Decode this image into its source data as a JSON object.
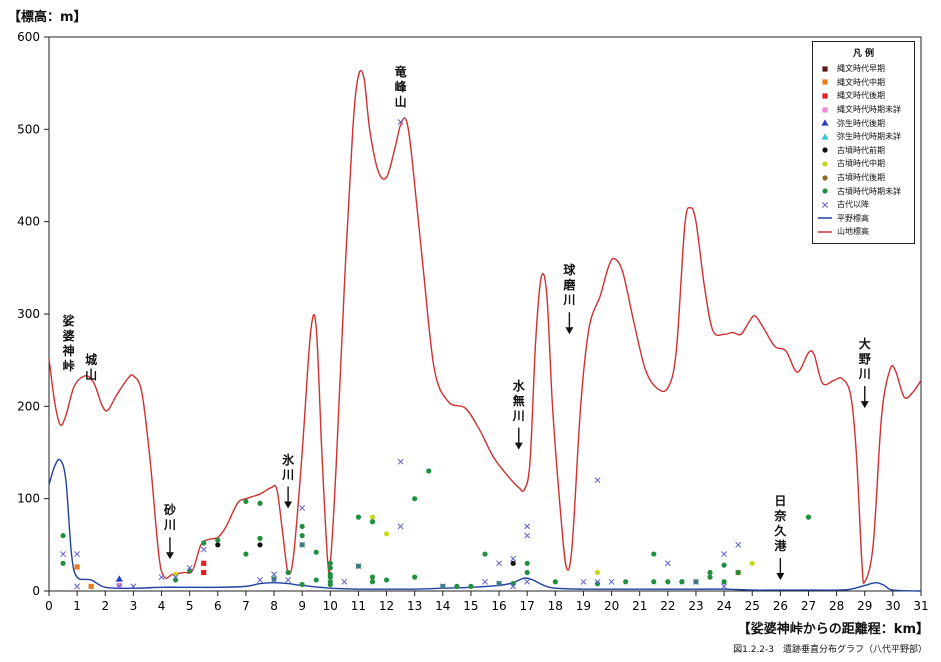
{
  "y_axis_label": "【標高：m】",
  "x_axis_label": "【娑婆神峠からの距離程：km】",
  "caption": "図1.2.2-3　遺跡垂直分布グラフ（八代平野部）",
  "legend": {
    "title": "凡 例",
    "items": [
      {
        "label": "縄文時代早期",
        "marker": "square",
        "color": "#5a1a1a"
      },
      {
        "label": "縄文時代中期",
        "marker": "square",
        "color": "#e87a20"
      },
      {
        "label": "縄文時代後期",
        "marker": "square",
        "color": "#e02020"
      },
      {
        "label": "縄文時代時期未詳",
        "marker": "square",
        "color": "#f08ad0"
      },
      {
        "label": "弥生時代後期",
        "marker": "triangle",
        "color": "#2040c0"
      },
      {
        "label": "弥生時代時期未詳",
        "marker": "triangle",
        "color": "#40c0e0"
      },
      {
        "label": "古墳時代前期",
        "marker": "circle",
        "color": "#111111"
      },
      {
        "label": "古墳時代中期",
        "marker": "circle",
        "color": "#c8d820"
      },
      {
        "label": "古墳時代後期",
        "marker": "circle",
        "color": "#8a6a20"
      },
      {
        "label": "古墳時代時期未詳",
        "marker": "circle",
        "color": "#209040"
      },
      {
        "label": "古代以降",
        "marker": "x",
        "color": "#6060d0"
      },
      {
        "label": "平野標高",
        "marker": "line",
        "color": "#2040a0"
      },
      {
        "label": "山地標高",
        "marker": "line",
        "color": "#d03030"
      }
    ]
  },
  "places": [
    {
      "text": "娑婆神峠",
      "x": 0.7,
      "y": 300,
      "arrow": false
    },
    {
      "text": "城山",
      "x": 1.5,
      "y": 258,
      "arrow": false
    },
    {
      "text": "竜峰山",
      "x": 12.5,
      "y": 570,
      "arrow": false
    },
    {
      "text": "球磨川",
      "x": 18.5,
      "y": 355,
      "arrow": true
    },
    {
      "text": "水無川",
      "x": 16.7,
      "y": 230,
      "arrow": true
    },
    {
      "text": "氷川",
      "x": 8.5,
      "y": 150,
      "arrow": true
    },
    {
      "text": "砂川",
      "x": 4.3,
      "y": 95,
      "arrow": true
    },
    {
      "text": "日奈久港",
      "x": 26.0,
      "y": 105,
      "arrow": true
    },
    {
      "text": "大野川",
      "x": 29.0,
      "y": 275,
      "arrow": true
    }
  ],
  "chart_data": {
    "type": "scatter",
    "xlim": [
      0,
      31
    ],
    "ylim": [
      0,
      600
    ],
    "xticks": [
      0,
      1,
      2,
      3,
      4,
      5,
      6,
      7,
      8,
      9,
      10,
      11,
      12,
      13,
      14,
      15,
      16,
      17,
      18,
      19,
      20,
      21,
      22,
      23,
      24,
      25,
      26,
      27,
      28,
      29,
      30,
      31
    ],
    "yticks": [
      0,
      100,
      200,
      300,
      400,
      500,
      600
    ],
    "grid": false,
    "legend_position": "top-right",
    "lines": [
      {
        "name": "平野標高",
        "color": "#2040a0",
        "points": [
          [
            0,
            115
          ],
          [
            0.2,
            135
          ],
          [
            0.4,
            142
          ],
          [
            0.6,
            120
          ],
          [
            0.8,
            40
          ],
          [
            1,
            15
          ],
          [
            1.5,
            12
          ],
          [
            2,
            4
          ],
          [
            3,
            3
          ],
          [
            4,
            4
          ],
          [
            5,
            4
          ],
          [
            6,
            4
          ],
          [
            7,
            5
          ],
          [
            7.5,
            8
          ],
          [
            8,
            9
          ],
          [
            8.5,
            8
          ],
          [
            9,
            6
          ],
          [
            10,
            3
          ],
          [
            11,
            2
          ],
          [
            12,
            2
          ],
          [
            13,
            2
          ],
          [
            14,
            3
          ],
          [
            15,
            4
          ],
          [
            16,
            6
          ],
          [
            16.5,
            9
          ],
          [
            16.9,
            14
          ],
          [
            17.2,
            12
          ],
          [
            17.6,
            6
          ],
          [
            18,
            3
          ],
          [
            19,
            2
          ],
          [
            20,
            2
          ],
          [
            21,
            2
          ],
          [
            22,
            2
          ],
          [
            23,
            2
          ],
          [
            24,
            2
          ],
          [
            25,
            1
          ],
          [
            26,
            1
          ],
          [
            27,
            1
          ],
          [
            28,
            1
          ],
          [
            28.5,
            2
          ],
          [
            29,
            6
          ],
          [
            29.4,
            9
          ],
          [
            29.7,
            6
          ],
          [
            30,
            1
          ],
          [
            31,
            0
          ]
        ]
      },
      {
        "name": "山地標高",
        "color": "#d03030",
        "points": [
          [
            0,
            252
          ],
          [
            0.2,
            205
          ],
          [
            0.4,
            180
          ],
          [
            0.6,
            190
          ],
          [
            0.9,
            222
          ],
          [
            1.3,
            233
          ],
          [
            1.6,
            225
          ],
          [
            1.9,
            200
          ],
          [
            2.1,
            196
          ],
          [
            2.4,
            212
          ],
          [
            2.8,
            230
          ],
          [
            3.0,
            233
          ],
          [
            3.3,
            215
          ],
          [
            3.6,
            140
          ],
          [
            3.9,
            40
          ],
          [
            4.1,
            15
          ],
          [
            4.4,
            18
          ],
          [
            4.8,
            20
          ],
          [
            5.1,
            22
          ],
          [
            5.4,
            50
          ],
          [
            5.7,
            56
          ],
          [
            6.0,
            58
          ],
          [
            6.3,
            70
          ],
          [
            6.7,
            95
          ],
          [
            7.0,
            100
          ],
          [
            7.5,
            105
          ],
          [
            7.9,
            112
          ],
          [
            8.1,
            110
          ],
          [
            8.3,
            65
          ],
          [
            8.5,
            20
          ],
          [
            8.7,
            40
          ],
          [
            9.0,
            150
          ],
          [
            9.3,
            280
          ],
          [
            9.5,
            285
          ],
          [
            9.7,
            150
          ],
          [
            9.9,
            35
          ],
          [
            10.0,
            30
          ],
          [
            10.2,
            130
          ],
          [
            10.5,
            330
          ],
          [
            10.8,
            500
          ],
          [
            11.0,
            558
          ],
          [
            11.2,
            555
          ],
          [
            11.4,
            500
          ],
          [
            11.7,
            455
          ],
          [
            12.0,
            448
          ],
          [
            12.3,
            480
          ],
          [
            12.5,
            505
          ],
          [
            12.7,
            510
          ],
          [
            12.9,
            470
          ],
          [
            13.3,
            350
          ],
          [
            13.7,
            240
          ],
          [
            14.2,
            205
          ],
          [
            14.8,
            198
          ],
          [
            15.3,
            175
          ],
          [
            15.8,
            145
          ],
          [
            16.3,
            125
          ],
          [
            16.7,
            112
          ],
          [
            16.9,
            110
          ],
          [
            17.1,
            140
          ],
          [
            17.3,
            270
          ],
          [
            17.5,
            340
          ],
          [
            17.7,
            320
          ],
          [
            17.9,
            200
          ],
          [
            18.2,
            80
          ],
          [
            18.4,
            25
          ],
          [
            18.6,
            50
          ],
          [
            18.9,
            200
          ],
          [
            19.2,
            285
          ],
          [
            19.6,
            320
          ],
          [
            19.9,
            352
          ],
          [
            20.1,
            360
          ],
          [
            20.4,
            345
          ],
          [
            20.8,
            290
          ],
          [
            21.2,
            240
          ],
          [
            21.6,
            220
          ],
          [
            22.0,
            220
          ],
          [
            22.3,
            260
          ],
          [
            22.6,
            395
          ],
          [
            22.8,
            415
          ],
          [
            23.0,
            400
          ],
          [
            23.3,
            330
          ],
          [
            23.6,
            282
          ],
          [
            24.0,
            278
          ],
          [
            24.3,
            280
          ],
          [
            24.6,
            278
          ],
          [
            24.9,
            292
          ],
          [
            25.1,
            298
          ],
          [
            25.4,
            285
          ],
          [
            25.8,
            265
          ],
          [
            26.2,
            260
          ],
          [
            26.6,
            237
          ],
          [
            27.0,
            258
          ],
          [
            27.2,
            256
          ],
          [
            27.5,
            225
          ],
          [
            27.9,
            228
          ],
          [
            28.2,
            230
          ],
          [
            28.5,
            212
          ],
          [
            28.7,
            150
          ],
          [
            28.9,
            30
          ],
          [
            29.0,
            10
          ],
          [
            29.3,
            50
          ],
          [
            29.6,
            190
          ],
          [
            29.9,
            240
          ],
          [
            30.1,
            238
          ],
          [
            30.4,
            210
          ],
          [
            30.7,
            215
          ],
          [
            31.0,
            228
          ]
        ]
      }
    ],
    "series": [
      {
        "name": "縄文時代早期",
        "x": [],
        "y": []
      },
      {
        "name": "縄文時代中期",
        "x": [
          1.0,
          1.5,
          24.5
        ],
        "y": [
          26,
          5,
          20
        ]
      },
      {
        "name": "縄文時代後期",
        "x": [
          5.5,
          5.5
        ],
        "y": [
          30,
          20
        ]
      },
      {
        "name": "縄文時代時期未詳",
        "x": [
          2.5
        ],
        "y": [
          6
        ]
      },
      {
        "name": "弥生時代後期",
        "x": [
          2.5
        ],
        "y": [
          13
        ]
      },
      {
        "name": "弥生時代時期未詳",
        "x": [],
        "y": []
      },
      {
        "name": "古墳時代前期",
        "x": [
          6.0,
          7.5,
          16.5
        ],
        "y": [
          50,
          50,
          30
        ]
      },
      {
        "name": "古墳時代中期",
        "x": [
          4.5,
          11.5,
          12.0,
          19.5,
          25.0
        ],
        "y": [
          18,
          80,
          62,
          20,
          30
        ]
      },
      {
        "name": "古墳時代後期",
        "x": [
          22.5
        ],
        "y": [
          10
        ]
      },
      {
        "name": "古墳時代時期未詳",
        "x": [
          0.5,
          0.5,
          4.5,
          5.0,
          5.5,
          6.0,
          7.0,
          7.0,
          7.5,
          7.5,
          8.0,
          8.5,
          9.0,
          9.0,
          9.0,
          9.0,
          9.5,
          9.5,
          10.0,
          10.0,
          10.0,
          10.0,
          10.0,
          10.0,
          11.0,
          11.0,
          11.5,
          11.5,
          11.5,
          12.0,
          13.0,
          13.0,
          13.5,
          14.0,
          14.5,
          15.0,
          15.5,
          16.0,
          16.5,
          17.0,
          17.0,
          18.0,
          19.5,
          20.5,
          21.5,
          21.5,
          22.0,
          22.5,
          23.0,
          23.5,
          23.5,
          24.0,
          24.0,
          24.5,
          27.0
        ],
        "y": [
          60,
          30,
          12,
          22,
          52,
          55,
          97,
          40,
          95,
          57,
          13,
          20,
          70,
          60,
          50,
          7,
          42,
          12,
          30,
          25,
          18,
          15,
          10,
          7,
          80,
          27,
          75,
          10,
          15,
          12,
          100,
          15,
          130,
          5,
          5,
          5,
          40,
          8,
          8,
          20,
          30,
          10,
          8,
          10,
          40,
          10,
          10,
          10,
          10,
          20,
          15,
          28,
          10,
          20,
          80
        ]
      },
      {
        "name": "古代以降",
        "x": [
          0.5,
          1.0,
          1.0,
          2.5,
          3.0,
          4.0,
          4.5,
          5.0,
          5.5,
          7.5,
          8.0,
          8.0,
          8.5,
          9.0,
          9.0,
          10.5,
          11.0,
          12.5,
          12.5,
          12.5,
          14.0,
          15.5,
          16.0,
          16.0,
          16.5,
          16.5,
          17.0,
          17.0,
          17.0,
          19.0,
          19.5,
          19.5,
          20.0,
          22.0,
          23.0,
          24.0,
          24.0,
          24.5
        ],
        "y": [
          40,
          40,
          5,
          5,
          5,
          15,
          15,
          25,
          45,
          12,
          18,
          12,
          12,
          90,
          50,
          10,
          27,
          140,
          70,
          508,
          5,
          10,
          30,
          8,
          35,
          5,
          70,
          60,
          10,
          10,
          120,
          10,
          10,
          30,
          10,
          40,
          5,
          50
        ]
      }
    ]
  }
}
